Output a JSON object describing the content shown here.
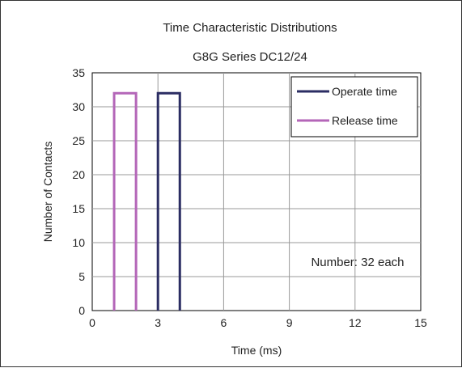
{
  "chart_data": {
    "type": "bar",
    "title": "Time Characteristic Distributions",
    "subtitle": "G8G Series DC12/24",
    "xlabel": "Time (ms)",
    "ylabel": "Number of Contacts",
    "xlim": [
      0,
      15
    ],
    "ylim": [
      0,
      35
    ],
    "x_ticks": [
      "0",
      "3",
      "6",
      "9",
      "12",
      "15"
    ],
    "y_ticks": [
      "0",
      "5",
      "10",
      "15",
      "20",
      "25",
      "30",
      "35"
    ],
    "grid": true,
    "legend_position": "top-right",
    "annotation": "Number: 32 each",
    "series": [
      {
        "name": "Operate time",
        "color": "#2b2d63",
        "bins": [
          {
            "x0": 3,
            "x1": 4,
            "value": 32
          }
        ]
      },
      {
        "name": "Release time",
        "color": "#b466b8",
        "bins": [
          {
            "x0": 1,
            "x1": 2,
            "value": 32
          }
        ]
      }
    ]
  }
}
